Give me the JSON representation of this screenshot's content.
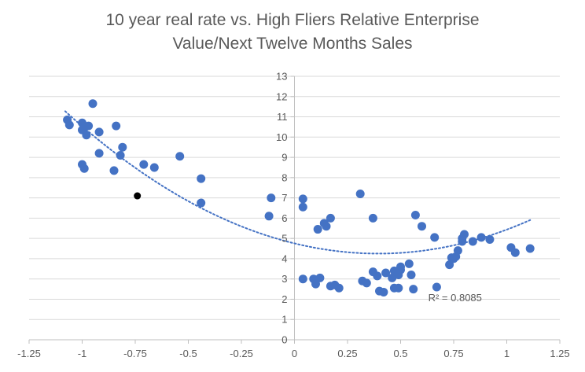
{
  "chart_data": {
    "type": "scatter",
    "title_lines": [
      "10 year real rate vs. High Fliers Relative Enterprise",
      "Value/Next Twelve Months Sales"
    ],
    "xlim": [
      -1.25,
      1.25
    ],
    "ylim": [
      0,
      13
    ],
    "x_ticks": [
      "-1.25",
      "-1",
      "-0.75",
      "-0.5",
      "-0.25",
      "0",
      "0.25",
      "0.5",
      "0.75",
      "1",
      "1.25"
    ],
    "x_tick_values": [
      -1.25,
      -1,
      -0.75,
      -0.5,
      -0.25,
      0,
      0.25,
      0.5,
      0.75,
      1,
      1.25
    ],
    "y_ticks": [
      "0",
      "1",
      "2",
      "3",
      "4",
      "5",
      "6",
      "7",
      "8",
      "9",
      "10",
      "11",
      "12",
      "13"
    ],
    "y_tick_values": [
      0,
      1,
      2,
      3,
      4,
      5,
      6,
      7,
      8,
      9,
      10,
      11,
      12,
      13
    ],
    "grid": "horizontal",
    "colors": {
      "points": "#4472c4",
      "highlight": "#000000",
      "trendline": "#4472c4",
      "grid": "#d9d9d9",
      "axis": "#bfbfbf",
      "text": "#595959"
    },
    "series": [
      {
        "points": [
          [
            -1.07,
            10.85
          ],
          [
            -1.06,
            10.6
          ],
          [
            -1.0,
            10.7
          ],
          [
            -1.0,
            10.35
          ],
          [
            -0.97,
            10.55
          ],
          [
            -0.98,
            10.1
          ],
          [
            -0.95,
            11.65
          ],
          [
            -0.84,
            10.55
          ],
          [
            -0.92,
            10.25
          ],
          [
            -0.81,
            9.5
          ],
          [
            -0.82,
            9.1
          ],
          [
            -0.92,
            9.2
          ],
          [
            -1.0,
            8.65
          ],
          [
            -0.99,
            8.45
          ],
          [
            -0.85,
            8.35
          ],
          [
            -0.71,
            8.65
          ],
          [
            -0.66,
            8.5
          ],
          [
            -0.54,
            9.05
          ],
          [
            -0.44,
            7.95
          ],
          [
            -0.44,
            6.75
          ],
          [
            -0.11,
            7.0
          ],
          [
            -0.12,
            6.1
          ],
          [
            0.04,
            6.95
          ],
          [
            0.04,
            6.55
          ],
          [
            0.31,
            7.2
          ],
          [
            0.14,
            5.75
          ],
          [
            0.15,
            5.6
          ],
          [
            0.17,
            6.0
          ],
          [
            0.11,
            5.45
          ],
          [
            0.37,
            6.0
          ],
          [
            0.57,
            6.15
          ],
          [
            0.6,
            5.6
          ],
          [
            0.66,
            5.05
          ],
          [
            0.79,
            5.0
          ],
          [
            0.8,
            5.2
          ],
          [
            0.79,
            4.85
          ],
          [
            0.84,
            4.85
          ],
          [
            0.88,
            5.05
          ],
          [
            0.92,
            4.95
          ],
          [
            1.02,
            4.55
          ],
          [
            1.04,
            4.3
          ],
          [
            1.11,
            4.5
          ],
          [
            0.77,
            4.4
          ],
          [
            0.73,
            3.7
          ],
          [
            0.74,
            4.05
          ],
          [
            0.75,
            4.0
          ],
          [
            0.76,
            4.1
          ],
          [
            0.54,
            3.75
          ],
          [
            0.5,
            3.6
          ],
          [
            0.5,
            3.45
          ],
          [
            0.47,
            3.4
          ],
          [
            0.49,
            3.2
          ],
          [
            0.43,
            3.3
          ],
          [
            0.46,
            3.05
          ],
          [
            0.37,
            3.35
          ],
          [
            0.39,
            3.15
          ],
          [
            0.55,
            3.2
          ],
          [
            0.04,
            3.0
          ],
          [
            0.09,
            3.0
          ],
          [
            0.12,
            3.05
          ],
          [
            0.1,
            2.75
          ],
          [
            0.32,
            2.9
          ],
          [
            0.34,
            2.8
          ],
          [
            0.17,
            2.65
          ],
          [
            0.19,
            2.7
          ],
          [
            0.21,
            2.55
          ],
          [
            0.47,
            2.55
          ],
          [
            0.49,
            2.55
          ],
          [
            0.56,
            2.5
          ],
          [
            0.67,
            2.6
          ],
          [
            0.4,
            2.4
          ],
          [
            0.42,
            2.35
          ]
        ]
      },
      {
        "role": "highlight",
        "points": [
          [
            -0.74,
            7.1
          ]
        ]
      }
    ],
    "trendline": {
      "kind": "polynomial-2",
      "x_range": [
        -1.08,
        1.11
      ],
      "coefficients": [
        4.755,
        -2.55,
        3.23
      ],
      "label": "R² = 0.8085",
      "label_anchor": [
        0.63,
        1.9
      ]
    }
  }
}
